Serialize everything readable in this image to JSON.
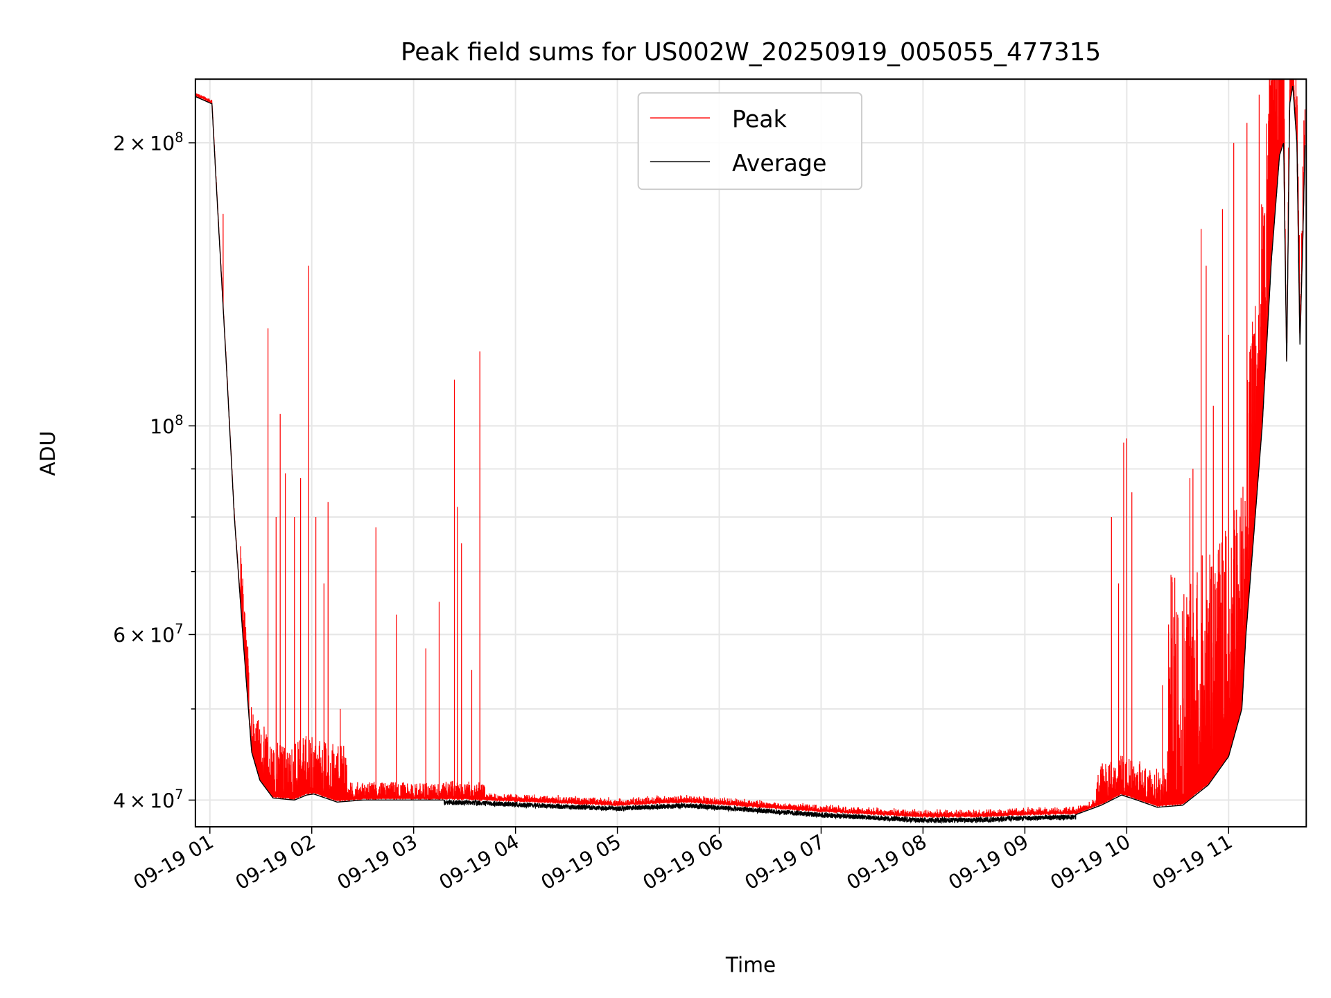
{
  "chart_data": {
    "type": "line",
    "title": "Peak field sums for US002W_20250919_005055_477315",
    "xlabel": "Time",
    "ylabel": "ADU",
    "yscale": "log",
    "ylim": [
      37500000,
      233700000
    ],
    "xlim_hours": [
      0.858,
      11.75
    ],
    "grid": true,
    "legend_position": "upper-center",
    "x_ticks": [
      {
        "hour": 1,
        "label": "09-19 01"
      },
      {
        "hour": 2,
        "label": "09-19 02"
      },
      {
        "hour": 3,
        "label": "09-19 03"
      },
      {
        "hour": 4,
        "label": "09-19 04"
      },
      {
        "hour": 5,
        "label": "09-19 05"
      },
      {
        "hour": 6,
        "label": "09-19 06"
      },
      {
        "hour": 7,
        "label": "09-19 07"
      },
      {
        "hour": 8,
        "label": "09-19 08"
      },
      {
        "hour": 9,
        "label": "09-19 09"
      },
      {
        "hour": 10,
        "label": "09-19 10"
      },
      {
        "hour": 11,
        "label": "09-19 11"
      }
    ],
    "y_ticks": [
      {
        "value": 40000000,
        "mant": "4",
        "exp": "7"
      },
      {
        "value": 60000000,
        "mant": "6",
        "exp": "7"
      },
      {
        "value": 100000000,
        "mant": "",
        "exp": "8"
      },
      {
        "value": 200000000,
        "mant": "2",
        "exp": "8"
      }
    ],
    "y_minor_ticks": [
      50000000,
      70000000,
      80000000,
      90000000
    ],
    "series": [
      {
        "name": "Peak",
        "color": "#ff0000",
        "noise_amplitude_by_hour": [
          [
            0.85,
            0.0
          ],
          [
            1.3,
            0.15
          ],
          [
            2.35,
            0.04
          ],
          [
            3.7,
            0.012
          ],
          [
            9.7,
            0.1
          ],
          [
            10.4,
            0.6
          ],
          [
            11.55,
            0.15
          ]
        ],
        "spikes": [
          [
            1.13,
            168000000
          ],
          [
            1.57,
            127000000
          ],
          [
            1.65,
            80000000
          ],
          [
            1.69,
            103000000
          ],
          [
            1.74,
            89000000
          ],
          [
            1.83,
            80000000
          ],
          [
            1.89,
            88000000
          ],
          [
            1.97,
            148000000
          ],
          [
            2.04,
            80000000
          ],
          [
            2.12,
            68000000
          ],
          [
            2.16,
            83000000
          ],
          [
            2.28,
            50000000
          ],
          [
            2.63,
            78000000
          ],
          [
            2.83,
            63000000
          ],
          [
            3.12,
            58000000
          ],
          [
            3.25,
            65000000
          ],
          [
            3.4,
            112000000
          ],
          [
            3.43,
            82000000
          ],
          [
            3.47,
            75000000
          ],
          [
            3.57,
            55000000
          ],
          [
            3.65,
            120000000
          ],
          [
            9.85,
            80000000
          ],
          [
            9.92,
            68000000
          ],
          [
            9.97,
            96000000
          ],
          [
            10.0,
            97000000
          ],
          [
            10.05,
            85000000
          ],
          [
            10.35,
            53000000
          ],
          [
            10.5,
            63000000
          ],
          [
            10.62,
            88000000
          ],
          [
            10.65,
            90000000
          ],
          [
            10.73,
            162000000
          ],
          [
            10.78,
            148000000
          ],
          [
            10.85,
            105000000
          ],
          [
            10.94,
            170000000
          ],
          [
            11.0,
            125000000
          ],
          [
            11.05,
            200000000
          ],
          [
            11.18,
            210000000
          ],
          [
            11.3,
            225000000
          ],
          [
            11.42,
            233000000
          ]
        ]
      },
      {
        "name": "Average",
        "color": "#000000",
        "points": [
          [
            0.858,
            224000000
          ],
          [
            1.02,
            220000000
          ],
          [
            1.08,
            167000000
          ],
          [
            1.16,
            117000000
          ],
          [
            1.24,
            80000000
          ],
          [
            1.33,
            58500000
          ],
          [
            1.41,
            45000000
          ],
          [
            1.49,
            42000000
          ],
          [
            1.62,
            40200000
          ],
          [
            1.83,
            40000000
          ],
          [
            1.95,
            40500000
          ],
          [
            2.02,
            40600000
          ],
          [
            2.25,
            39800000
          ],
          [
            2.5,
            40000000
          ],
          [
            3.0,
            40000000
          ],
          [
            3.5,
            40000000
          ],
          [
            4.0,
            39800000
          ],
          [
            5.0,
            39400000
          ],
          [
            5.4,
            39600000
          ],
          [
            5.7,
            39700000
          ],
          [
            6.0,
            39500000
          ],
          [
            7.0,
            38800000
          ],
          [
            8.0,
            38300000
          ],
          [
            8.5,
            38300000
          ],
          [
            9.0,
            38500000
          ],
          [
            9.5,
            38600000
          ],
          [
            9.75,
            39500000
          ],
          [
            9.95,
            40500000
          ],
          [
            10.1,
            40000000
          ],
          [
            10.3,
            39300000
          ],
          [
            10.55,
            39500000
          ],
          [
            10.8,
            41500000
          ],
          [
            11.0,
            44500000
          ],
          [
            11.13,
            50000000
          ],
          [
            11.17,
            60000000
          ],
          [
            11.21,
            68000000
          ],
          [
            11.33,
            100000000
          ],
          [
            11.42,
            150000000
          ],
          [
            11.5,
            194000000
          ],
          [
            11.54,
            200000000
          ],
          [
            11.57,
            116000000
          ],
          [
            11.6,
            220000000
          ],
          [
            11.63,
            230000000
          ],
          [
            11.67,
            200000000
          ],
          [
            11.7,
            122000000
          ],
          [
            11.73,
            160000000
          ],
          [
            11.75,
            200000000
          ]
        ]
      }
    ]
  }
}
